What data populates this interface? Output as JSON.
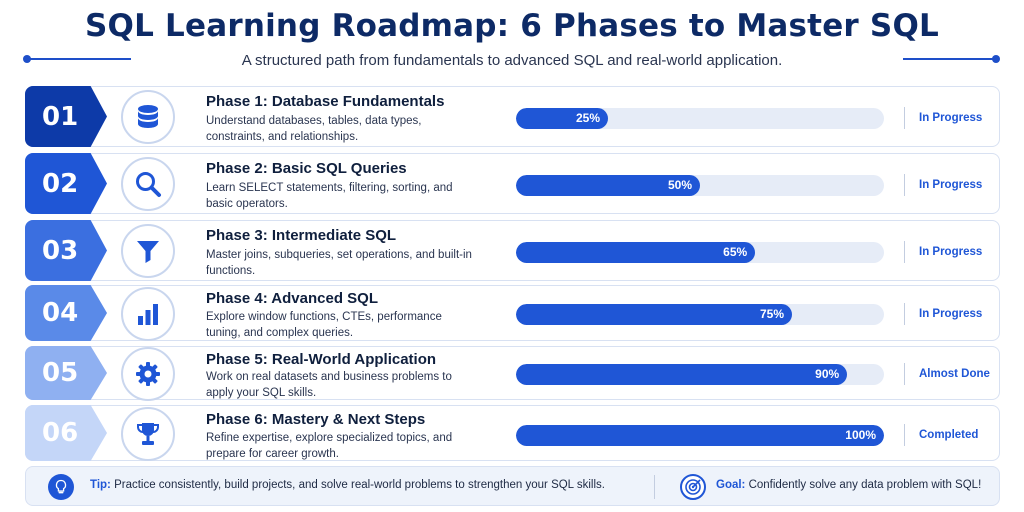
{
  "header": {
    "title": "SQL Learning Roadmap: 6 Phases to Master SQL",
    "subtitle": "A structured path from fundamentals to advanced SQL and real-world application."
  },
  "colors": {
    "accent": "#1f56d6",
    "badges": [
      "#0d3aa8",
      "#1f56d6",
      "#3b6fe0",
      "#5a8ae8",
      "#8fb0f1",
      "#c4d6f8"
    ]
  },
  "phases": [
    {
      "number": "01",
      "title": "Phase 1: Database Fundamentals",
      "desc": "Understand databases, tables, data types, constraints, and relationships.",
      "progress_label": "25%",
      "progress": 25,
      "status": "In Progress",
      "icon": "database-icon"
    },
    {
      "number": "02",
      "title": "Phase 2: Basic SQL Queries",
      "desc": "Learn SELECT statements, filtering, sorting, and basic operators.",
      "progress_label": "50%",
      "progress": 50,
      "status": "In Progress",
      "icon": "search-icon"
    },
    {
      "number": "03",
      "title": "Phase 3: Intermediate SQL",
      "desc": "Master joins, subqueries, set operations, and built-in functions.",
      "progress_label": "65%",
      "progress": 65,
      "status": "In Progress",
      "icon": "filter-icon"
    },
    {
      "number": "04",
      "title": "Phase 4: Advanced SQL",
      "desc": "Explore window functions, CTEs, performance tuning, and complex queries.",
      "progress_label": "75%",
      "progress": 75,
      "status": "In Progress",
      "icon": "bar-chart-icon"
    },
    {
      "number": "05",
      "title": "Phase 5: Real-World Application",
      "desc": "Work on real datasets and business problems to apply your SQL skills.",
      "progress_label": "90%",
      "progress": 90,
      "status": "Almost Done",
      "icon": "gear-icon"
    },
    {
      "number": "06",
      "title": "Phase 6: Mastery & Next Steps",
      "desc": "Refine expertise, explore specialized topics, and prepare for career growth.",
      "progress_label": "100%",
      "progress": 100,
      "status": "Completed",
      "icon": "trophy-icon"
    }
  ],
  "footer": {
    "tip_label": "Tip:",
    "tip_text": " Practice consistently, build projects, and solve real-world problems to strengthen your SQL skills.",
    "goal_label": "Goal:",
    "goal_text": " Confidently solve any data problem with SQL!"
  }
}
